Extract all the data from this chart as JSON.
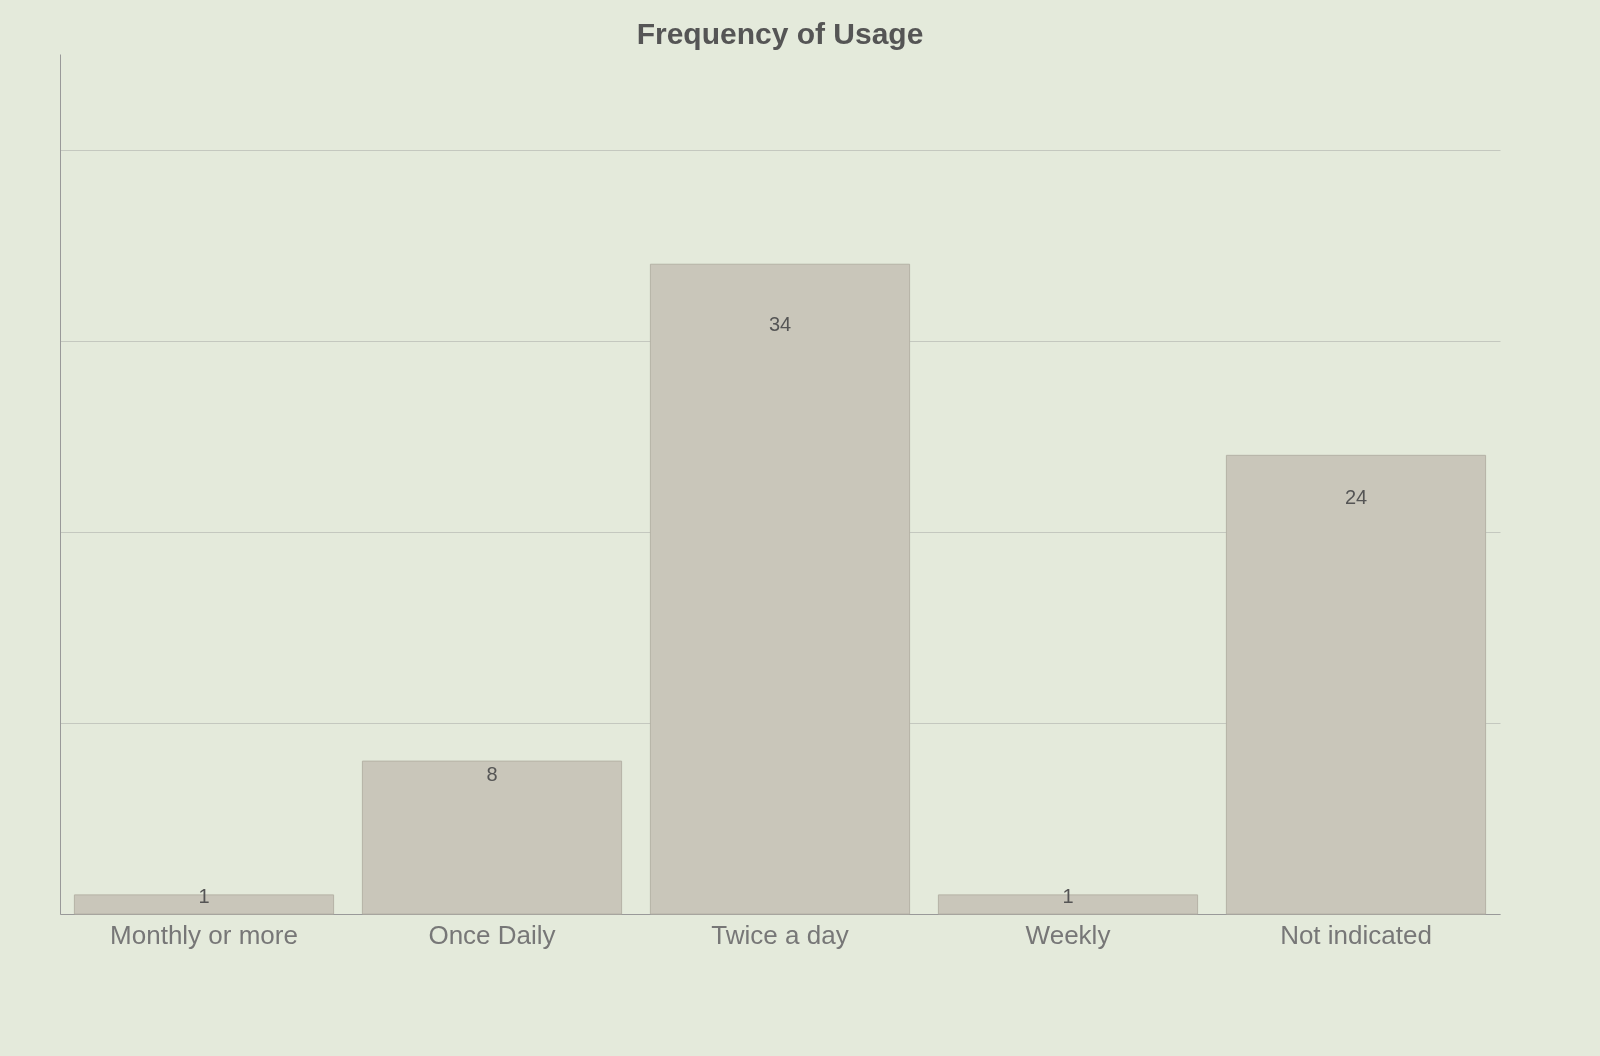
{
  "chart_data": {
    "type": "bar",
    "title": "Frequency of Usage",
    "categories": [
      "Monthly or more",
      "Once Daily",
      "Twice a day",
      "Weekly",
      "Not indicated"
    ],
    "values": [
      1,
      8,
      34,
      1,
      24
    ],
    "color": "#c9c6ba",
    "ylim": [
      0,
      45
    ],
    "yticks": [
      0,
      10,
      20,
      30,
      40
    ],
    "grid": "y",
    "data_labels": true,
    "tick_labels": "x"
  }
}
